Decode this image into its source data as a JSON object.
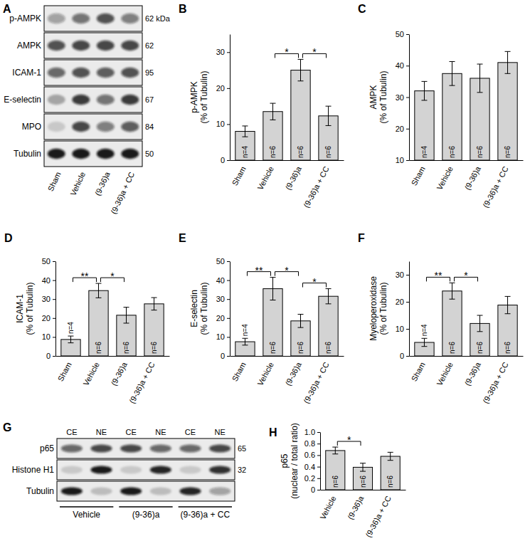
{
  "blots": [
    {
      "panel": "A",
      "rows": [
        "p-AMPK",
        "AMPK",
        "ICAM-1",
        "E-selectin",
        "MPO",
        "Tubulin"
      ],
      "sizes": [
        "62 kDa",
        "62",
        "95",
        "67",
        "84",
        "50"
      ],
      "lanes": [
        "Sham",
        "Vehicle",
        "(9-36)a",
        "(9-36)a + CC"
      ],
      "intensity": [
        [
          0.35,
          0.55,
          0.7,
          0.5
        ],
        [
          0.7,
          0.75,
          0.75,
          0.75
        ],
        [
          0.6,
          0.7,
          0.65,
          0.7
        ],
        [
          0.3,
          0.8,
          0.55,
          0.8
        ],
        [
          0.15,
          0.75,
          0.5,
          0.65
        ],
        [
          0.95,
          0.95,
          0.95,
          0.95
        ]
      ]
    },
    {
      "panel": "G",
      "rows": [
        "p65",
        "Histone H1",
        "Tubulin"
      ],
      "sizes": [
        "65",
        "32",
        null
      ],
      "lanes": [
        "CE",
        "NE",
        "CE",
        "NE",
        "CE",
        "NE"
      ],
      "groups": [
        "Vehicle",
        "(9-36)a",
        "(9-36)a + CC"
      ],
      "intensity": [
        [
          0.6,
          0.75,
          0.75,
          0.6,
          0.6,
          0.75
        ],
        [
          0.15,
          0.95,
          0.15,
          0.9,
          0.15,
          0.85
        ],
        [
          0.95,
          0.2,
          0.95,
          0.2,
          0.9,
          0.35
        ]
      ]
    }
  ],
  "chart_data": [
    {
      "panel": "B",
      "type": "bar",
      "y_label": [
        "p-AMPK",
        "(% of Tubulin)"
      ],
      "color": "#d3d3d3",
      "categories": [
        "Sham",
        "Vehicle",
        "(9-36)a",
        "(9-36)a + CC"
      ],
      "values": [
        8,
        13.5,
        25,
        12.3
      ],
      "errors": [
        1.5,
        2.3,
        3,
        2.7
      ],
      "n_labels": [
        "n=4",
        "n=6",
        "n=6",
        "n=6"
      ],
      "significance": [
        {
          "pair": [
            "Vehicle",
            "(9-36)a"
          ],
          "label": "*"
        },
        {
          "pair": [
            "(9-36)a",
            "(9-36)a + CC"
          ],
          "label": "*"
        }
      ],
      "ylim": [
        0,
        35
      ],
      "yticks": [
        0,
        10,
        20,
        30
      ]
    },
    {
      "panel": "C",
      "type": "bar",
      "y_label": [
        "AMPK",
        "(% of Tubulin)"
      ],
      "color": "#d3d3d3",
      "categories": [
        "Sham",
        "Vehicle",
        "(9-36)a",
        "(9-36)a + CC"
      ],
      "values": [
        32,
        37.5,
        36,
        41
      ],
      "errors": [
        3,
        3.8,
        4.5,
        3.5
      ],
      "n_labels": [
        "n=4",
        "n=6",
        "n=6",
        "n=6"
      ],
      "significance": [],
      "ylim": [
        10,
        50
      ],
      "yticks": [
        10,
        20,
        30,
        40,
        50
      ]
    },
    {
      "panel": "D",
      "type": "bar",
      "y_label": [
        "ICAM-1",
        "(% of Tubulin)"
      ],
      "color": "#d3d3d3",
      "categories": [
        "Sham",
        "Vehicle",
        "(9-36)a",
        "(9-36)a + CC"
      ],
      "values": [
        8.7,
        34.5,
        21.5,
        27.5
      ],
      "errors": [
        1.8,
        3.8,
        4.2,
        3.3
      ],
      "n_labels": [
        "n=4",
        "n=6",
        "n=6",
        "n=6"
      ],
      "significance": [
        {
          "pair": [
            "Sham",
            "Vehicle"
          ],
          "label": "**"
        },
        {
          "pair": [
            "Vehicle",
            "(9-36)a"
          ],
          "label": "*"
        }
      ],
      "ylim": [
        0,
        50
      ],
      "yticks": [
        0,
        10,
        20,
        30,
        40,
        50
      ]
    },
    {
      "panel": "E",
      "type": "bar",
      "y_label": [
        "E-selectin",
        "(% of Tubulin)"
      ],
      "color": "#d3d3d3",
      "categories": [
        "Sham",
        "Vehicle",
        "(9-36)a",
        "(9-36)a + CC"
      ],
      "values": [
        7.5,
        35.5,
        18.5,
        31.5
      ],
      "errors": [
        1.8,
        6,
        3.5,
        4
      ],
      "n_labels": [
        "n=4",
        "n=6",
        "n=6",
        "n=6"
      ],
      "significance": [
        {
          "pair": [
            "Sham",
            "Vehicle"
          ],
          "label": "**"
        },
        {
          "pair": [
            "Vehicle",
            "(9-36)a"
          ],
          "label": "*"
        },
        {
          "pair": [
            "(9-36)a",
            "(9-36)a + CC"
          ],
          "label": "*"
        }
      ],
      "ylim": [
        0,
        50
      ],
      "yticks": [
        0,
        10,
        20,
        30,
        40,
        50
      ]
    },
    {
      "panel": "F",
      "type": "bar",
      "y_label": [
        "Myeloperoxidase",
        "(% of Tubulin)"
      ],
      "color": "#d3d3d3",
      "categories": [
        "Sham",
        "Vehicle",
        "(9-36)a",
        "(9-36)a + CC"
      ],
      "values": [
        5,
        24,
        12,
        18.8
      ],
      "errors": [
        1.5,
        3,
        3,
        3.2
      ],
      "n_labels": [
        "n=4",
        "n=6",
        "n=6",
        "n=6"
      ],
      "significance": [
        {
          "pair": [
            "Sham",
            "Vehicle"
          ],
          "label": "**"
        },
        {
          "pair": [
            "Vehicle",
            "(9-36)a"
          ],
          "label": "*"
        }
      ],
      "ylim": [
        0,
        35
      ],
      "yticks": [
        0,
        10,
        20,
        30
      ]
    },
    {
      "panel": "H",
      "type": "bar",
      "y_label": [
        "p65",
        "(nuclear / total ratio)"
      ],
      "color": "#d3d3d3",
      "categories": [
        "Vehicle",
        "(9-36)a",
        "(9-36)a + CC"
      ],
      "values": [
        0.68,
        0.39,
        0.58
      ],
      "errors": [
        0.06,
        0.07,
        0.07
      ],
      "n_labels": [
        "n=6",
        "n=6",
        "n=6"
      ],
      "significance": [
        {
          "pair": [
            "Vehicle",
            "(9-36)a"
          ],
          "label": "*"
        }
      ],
      "ylim": [
        0,
        1.0
      ],
      "yticks": [
        0,
        0.2,
        0.4,
        0.6,
        0.8,
        {
          "value": 1.0,
          "label": "1.0"
        }
      ]
    }
  ]
}
